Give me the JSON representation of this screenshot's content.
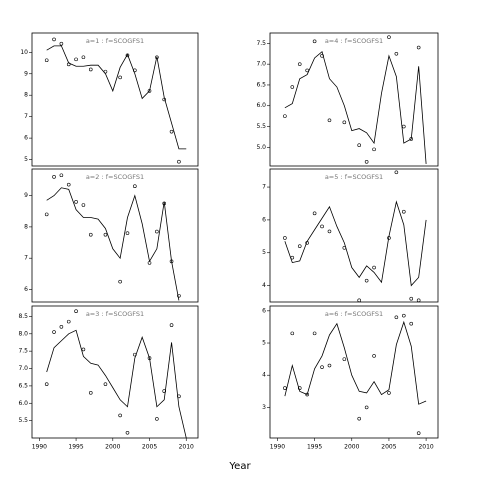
{
  "xlabel": "Year",
  "chart_data": [
    {
      "type": "line",
      "title": "a=1 : f=SCOGFS1",
      "color": "#000000",
      "x": [
        1991,
        1992,
        1993,
        1994,
        1995,
        1996,
        1997,
        1998,
        1999,
        2000,
        2001,
        2002,
        2003,
        2004,
        2005,
        2006,
        2007,
        2008,
        2009,
        2010
      ],
      "series": [
        {
          "style": "points",
          "values": [
            9.63,
            10.6,
            10.4,
            9.44,
            9.67,
            9.77,
            9.2,
            null,
            9.1,
            null,
            8.83,
            9.86,
            9.16,
            null,
            8.2,
            9.77,
            7.8,
            6.3,
            4.9,
            null
          ]
        },
        {
          "style": "line",
          "values": [
            10.1,
            10.3,
            10.3,
            9.5,
            9.35,
            9.35,
            9.4,
            9.4,
            9.0,
            8.2,
            9.3,
            9.9,
            9.0,
            7.85,
            8.2,
            9.8,
            7.9,
            6.7,
            5.5,
            5.5
          ]
        }
      ],
      "xlim": [
        1989,
        2011.6
      ],
      "ylim": [
        4.7,
        10.9
      ],
      "yticks": [
        5,
        6,
        7,
        8,
        9,
        10
      ]
    },
    {
      "type": "line",
      "title": "a=2 : f=SCOGFS1",
      "color": "#000000",
      "x": [
        1991,
        1992,
        1993,
        1994,
        1995,
        1996,
        1997,
        1998,
        1999,
        2000,
        2001,
        2002,
        2003,
        2004,
        2005,
        2006,
        2007,
        2008,
        2009,
        2010
      ],
      "series": [
        {
          "style": "points",
          "values": [
            8.4,
            9.6,
            9.65,
            9.35,
            8.8,
            8.7,
            7.75,
            null,
            7.75,
            null,
            6.25,
            7.8,
            9.3,
            null,
            6.85,
            7.85,
            8.75,
            6.9,
            5.8,
            null
          ]
        },
        {
          "style": "line",
          "values": [
            8.85,
            9.0,
            9.25,
            9.2,
            8.55,
            8.3,
            8.3,
            8.25,
            7.95,
            7.3,
            7.0,
            8.3,
            9.0,
            8.1,
            6.9,
            7.3,
            8.8,
            6.9,
            5.65,
            null
          ]
        }
      ],
      "xlim": [
        1989,
        2011.6
      ],
      "ylim": [
        5.6,
        9.85
      ],
      "yticks": [
        6,
        7,
        8,
        9
      ]
    },
    {
      "type": "line",
      "title": "a=3 : f=SCOGFS1",
      "color": "#000000",
      "x": [
        1991,
        1992,
        1993,
        1994,
        1995,
        1996,
        1997,
        1998,
        1999,
        2000,
        2001,
        2002,
        2003,
        2004,
        2005,
        2006,
        2007,
        2008,
        2009,
        2010
      ],
      "series": [
        {
          "style": "points",
          "values": [
            6.55,
            8.05,
            8.2,
            8.35,
            8.65,
            7.55,
            6.3,
            null,
            6.55,
            null,
            5.65,
            5.15,
            7.4,
            null,
            7.3,
            5.55,
            6.35,
            8.25,
            6.2,
            null
          ]
        },
        {
          "style": "line",
          "values": [
            6.9,
            7.6,
            7.8,
            8.0,
            8.1,
            7.35,
            7.15,
            7.1,
            6.8,
            6.45,
            6.1,
            5.9,
            7.3,
            7.9,
            7.3,
            5.9,
            6.1,
            7.75,
            5.9,
            5.0
          ]
        }
      ],
      "xlim": [
        1989,
        2011.6
      ],
      "ylim": [
        5.0,
        8.8
      ],
      "xticks": [
        1990,
        1995,
        2000,
        2005,
        2010
      ],
      "yticks": [
        5.5,
        {
          "value": 6,
          "label": "6.0"
        },
        6.5,
        {
          "value": 7,
          "label": "7.0"
        },
        7.5,
        {
          "value": 8,
          "label": "8.0"
        },
        8.5
      ]
    },
    {
      "type": "line",
      "title": "a=4 : f=SCOGFS1",
      "color": "#000000",
      "x": [
        1991,
        1992,
        1993,
        1994,
        1995,
        1996,
        1997,
        1998,
        1999,
        2000,
        2001,
        2002,
        2003,
        2004,
        2005,
        2006,
        2007,
        2008,
        2009,
        2010
      ],
      "series": [
        {
          "style": "points",
          "values": [
            5.75,
            6.45,
            7.0,
            6.85,
            7.55,
            7.2,
            5.65,
            null,
            5.6,
            null,
            5.05,
            4.65,
            4.95,
            null,
            7.65,
            7.25,
            5.5,
            5.2,
            7.4,
            null
          ]
        },
        {
          "style": "line",
          "values": [
            5.95,
            6.05,
            6.65,
            6.75,
            7.15,
            7.3,
            6.65,
            6.45,
            6.0,
            5.4,
            5.45,
            5.35,
            5.1,
            6.3,
            7.2,
            6.7,
            5.1,
            5.2,
            6.95,
            4.6
          ]
        }
      ],
      "xlim": [
        1989,
        2011.6
      ],
      "ylim": [
        4.55,
        7.75
      ],
      "yticks": [
        {
          "value": 5,
          "label": "5.0"
        },
        5.5,
        {
          "value": 6,
          "label": "6.0"
        },
        6.5,
        {
          "value": 7,
          "label": "7.0"
        },
        7.5
      ]
    },
    {
      "type": "line",
      "title": "a=5 : f=SCOGFS1",
      "color": "#000000",
      "x": [
        1991,
        1992,
        1993,
        1994,
        1995,
        1996,
        1997,
        1998,
        1999,
        2000,
        2001,
        2002,
        2003,
        2004,
        2005,
        2006,
        2007,
        2008,
        2009,
        2010
      ],
      "series": [
        {
          "style": "points",
          "values": [
            5.45,
            4.85,
            5.2,
            5.3,
            6.2,
            5.8,
            5.65,
            null,
            5.15,
            null,
            3.55,
            4.15,
            4.55,
            null,
            5.45,
            7.45,
            6.25,
            3.6,
            3.55,
            null
          ]
        },
        {
          "style": "line",
          "values": [
            5.35,
            4.7,
            4.75,
            5.35,
            5.7,
            6.05,
            6.4,
            5.8,
            5.3,
            4.55,
            4.25,
            4.6,
            4.4,
            4.1,
            5.5,
            6.55,
            5.85,
            4.0,
            4.25,
            6.0
          ]
        }
      ],
      "xlim": [
        1989,
        2011.6
      ],
      "ylim": [
        3.5,
        7.55
      ],
      "yticks": [
        4,
        5,
        6,
        7
      ]
    },
    {
      "type": "line",
      "title": "a=6 : f=SCOGFS1",
      "color": "#000000",
      "x": [
        1991,
        1992,
        1993,
        1994,
        1995,
        1996,
        1997,
        1998,
        1999,
        2000,
        2001,
        2002,
        2003,
        2004,
        2005,
        2006,
        2007,
        2008,
        2009,
        2010
      ],
      "series": [
        {
          "style": "points",
          "values": [
            3.6,
            5.3,
            3.6,
            3.4,
            5.3,
            4.25,
            4.3,
            null,
            4.5,
            null,
            2.65,
            3.0,
            4.6,
            null,
            3.45,
            5.8,
            5.85,
            5.6,
            2.2,
            null
          ]
        },
        {
          "style": "line",
          "values": [
            3.35,
            4.3,
            3.5,
            3.4,
            4.2,
            4.6,
            5.25,
            5.6,
            4.85,
            4.0,
            3.5,
            3.45,
            3.8,
            3.4,
            3.55,
            4.95,
            5.65,
            4.9,
            3.1,
            3.2
          ]
        }
      ],
      "xlim": [
        1989,
        2011.6
      ],
      "ylim": [
        2.05,
        6.15
      ],
      "xticks": [
        1990,
        1995,
        2000,
        2005,
        2010
      ],
      "yticks": [
        3,
        4,
        5,
        6
      ]
    }
  ]
}
